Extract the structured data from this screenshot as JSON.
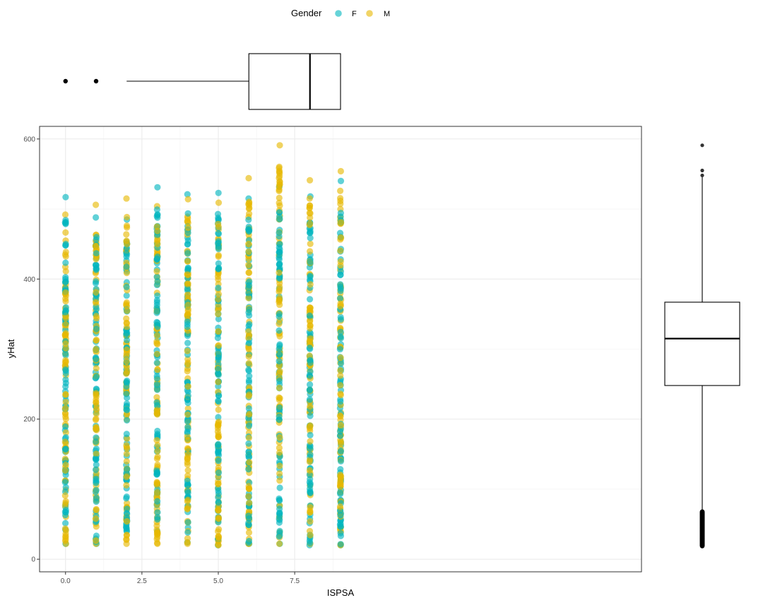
{
  "chart_data": {
    "type": "scatter",
    "xlabel": "ISPSA",
    "ylabel": "yHat",
    "xlim": [
      -0.85,
      18.85
    ],
    "ylim": [
      -18,
      618
    ],
    "x_ticks": [
      0.0,
      2.5,
      5.0,
      7.5
    ],
    "x_tick_labels": [
      "0.0",
      "2.5",
      "5.0",
      "7.5"
    ],
    "y_ticks": [
      0,
      200,
      400,
      600
    ],
    "y_tick_labels": [
      "0",
      "200",
      "400",
      "600"
    ],
    "grid": true,
    "legend": {
      "title": "Gender",
      "position": "top",
      "entries": [
        {
          "label": "F",
          "color": "#00B5BE"
        },
        {
          "label": "M",
          "color": "#E7B800"
        }
      ]
    },
    "series": [
      {
        "name": "F",
        "color": "#00B5BE",
        "columns": [
          {
            "x": 0,
            "min": 22,
            "max": 517
          },
          {
            "x": 1,
            "min": 22,
            "max": 488
          },
          {
            "x": 2,
            "min": 40,
            "max": 485
          },
          {
            "x": 3,
            "min": 40,
            "max": 531
          },
          {
            "x": 4,
            "min": 24,
            "max": 521
          },
          {
            "x": 5,
            "min": 20,
            "max": 523
          },
          {
            "x": 6,
            "min": 22,
            "max": 515
          },
          {
            "x": 7,
            "min": 22,
            "max": 532
          },
          {
            "x": 8,
            "min": 20,
            "max": 518
          },
          {
            "x": 9,
            "min": 20,
            "max": 540
          }
        ]
      },
      {
        "name": "M",
        "color": "#E7B800",
        "columns": [
          {
            "x": 0,
            "min": 22,
            "max": 492
          },
          {
            "x": 1,
            "min": 22,
            "max": 506
          },
          {
            "x": 2,
            "min": 22,
            "max": 515
          },
          {
            "x": 3,
            "min": 22,
            "max": 504
          },
          {
            "x": 4,
            "min": 22,
            "max": 514
          },
          {
            "x": 5,
            "min": 20,
            "max": 509
          },
          {
            "x": 6,
            "min": 22,
            "max": 544
          },
          {
            "x": 7,
            "min": 22,
            "max": 591
          },
          {
            "x": 8,
            "min": 22,
            "max": 541
          },
          {
            "x": 9,
            "min": 20,
            "max": 554
          }
        ]
      }
    ],
    "marginal_x_boxplot": {
      "variable": "ISPSA",
      "whisker_low": 2,
      "q1": 6,
      "median": 8,
      "q3": 9,
      "whisker_high": 9,
      "outliers": [
        0,
        1
      ]
    },
    "marginal_y_boxplot": {
      "variable": "yHat",
      "whisker_low": 68,
      "q1": 248,
      "median": 315,
      "q3": 367,
      "whisker_high": 547,
      "outliers_high": [
        555,
        548,
        591
      ],
      "outliers_low_range": [
        19,
        68
      ]
    }
  }
}
